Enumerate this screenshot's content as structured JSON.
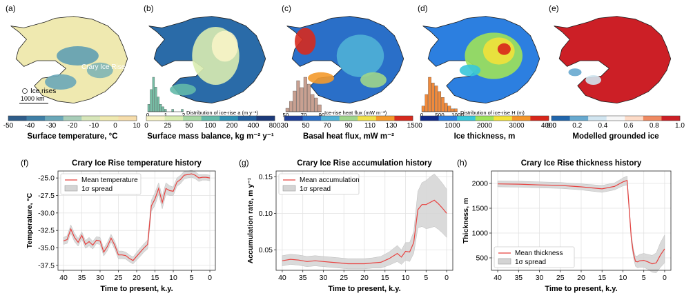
{
  "maps": [
    {
      "panel": "(a)",
      "title": "Surface temperature, °C",
      "ticks": [
        "-50",
        "-40",
        "-30",
        "-20",
        "-10",
        "0",
        "10"
      ],
      "colors": [
        "#2f5d8a",
        "#3f7fa6",
        "#6aa7b8",
        "#a8cdb8",
        "#d7e6b9",
        "#efe9b0",
        "#f6ddab"
      ],
      "annotations": {
        "label": "Crary Ice Rise",
        "legend": "Ice rises",
        "scale": "1000 km"
      }
    },
    {
      "panel": "(b)",
      "title": "Surface mass balance, kg m⁻² y⁻¹",
      "ticks": [
        "0",
        "25",
        "50",
        "100",
        "200",
        "400",
        "800"
      ],
      "colors": [
        "#f7f4c7",
        "#d9ecb0",
        "#a7d7a3",
        "#63b9a9",
        "#2f8fb4",
        "#2260a0",
        "#1c3a7a"
      ],
      "hist": {
        "label": "Distribution of ice-rise a (m y⁻¹)",
        "ticks": [
          "0",
          "1",
          "2"
        ],
        "color": "#76bfa6",
        "counts": [
          3,
          9,
          14,
          10,
          6,
          3,
          2,
          1,
          0,
          0,
          1,
          0,
          0,
          0,
          1
        ]
      }
    },
    {
      "panel": "(c)",
      "title": "Basal heat flux, mW m⁻²",
      "ticks": [
        "30",
        "50",
        "70",
        "90",
        "110",
        "130",
        "150"
      ],
      "colors": [
        "#1e3f9a",
        "#2a6fc8",
        "#4fb0d6",
        "#9fd58b",
        "#f0e04a",
        "#f49a2c",
        "#d62a1e"
      ],
      "hist": {
        "label": "Ice-rise heat flux (mW m⁻²)",
        "ticks": [
          "50",
          "70",
          "90"
        ],
        "color": "#c8a091",
        "counts": [
          1,
          3,
          6,
          9,
          7,
          10,
          8,
          5,
          4,
          2
        ]
      }
    },
    {
      "panel": "(d)",
      "title": "Ice thickness, m",
      "ticks": [
        "0",
        "1000",
        "2000",
        "3000",
        "4000"
      ],
      "colors": [
        "#0f2a8a",
        "#2c7fe0",
        "#37c6d9",
        "#9ee25a",
        "#f2e23a",
        "#f4952a",
        "#d8261b"
      ],
      "hist": {
        "label": "Distribution of ice-rise H (m)",
        "ticks": [
          "0",
          "500",
          "1000"
        ],
        "color": "#f08a3c",
        "counts": [
          2,
          6,
          12,
          10,
          9,
          7,
          5,
          3,
          2,
          1,
          1
        ]
      }
    },
    {
      "panel": "(e)",
      "title": "Modelled grounded ice",
      "ticks": [
        "0.0",
        "0.2",
        "0.4",
        "0.6",
        "0.8",
        "1.0"
      ],
      "colors": [
        "#2166ac",
        "#67a9cf",
        "#d1e5f0",
        "#f7f7f7",
        "#fddbc7",
        "#ef8a62",
        "#cc1f26"
      ]
    }
  ],
  "chart_data": [
    {
      "type": "line",
      "panel": "(f)",
      "title": "Crary Ice Rise temperature history",
      "xlabel": "Time to present, k.y.",
      "ylabel": "Temperature, °C",
      "xlim": [
        41.5,
        -1.5
      ],
      "ylim": [
        -38.2,
        -24.0
      ],
      "xticks": [
        40,
        35,
        30,
        25,
        20,
        15,
        10,
        5,
        0
      ],
      "yticks": [
        -37.5,
        -35.0,
        -32.5,
        -30.0,
        -27.5,
        -25.0
      ],
      "ytick_labels": [
        "-37.5",
        "-35.0",
        "-32.5",
        "-30.0",
        "-27.5",
        "-25.0"
      ],
      "grid": true,
      "legend_position": "upper left",
      "series": [
        {
          "name": "Mean temperature",
          "color": "#e8413f",
          "x": [
            40,
            39,
            38,
            37,
            36,
            35,
            34,
            33,
            32,
            31,
            30,
            29,
            28,
            27,
            26,
            25,
            24,
            23,
            22,
            21,
            20,
            19,
            18,
            17,
            16,
            15,
            14,
            13,
            12,
            11,
            10,
            9,
            8,
            7,
            6,
            5,
            4,
            3,
            2,
            1,
            0
          ],
          "y": [
            -34.0,
            -33.8,
            -32.3,
            -33.5,
            -34.2,
            -33.2,
            -34.5,
            -34.1,
            -34.6,
            -33.9,
            -34.0,
            -35.6,
            -34.8,
            -33.6,
            -34.6,
            -36.0,
            -36.0,
            -36.1,
            -36.5,
            -36.8,
            -36.2,
            -35.6,
            -35.0,
            -34.5,
            -29.0,
            -28.0,
            -26.5,
            -28.5,
            -26.5,
            -26.8,
            -26.9,
            -25.6,
            -25.2,
            -24.6,
            -24.5,
            -24.4,
            -24.6,
            -25.0,
            -24.9,
            -24.9,
            -25.0
          ],
          "spread": [
            0.5,
            0.55,
            0.6,
            0.6,
            0.55,
            0.5,
            0.55,
            0.6,
            0.55,
            0.5,
            0.5,
            0.55,
            0.6,
            0.55,
            0.55,
            0.55,
            0.55,
            0.5,
            0.5,
            0.5,
            0.55,
            0.6,
            0.6,
            0.65,
            0.8,
            0.9,
            0.8,
            0.9,
            0.8,
            0.7,
            0.6,
            0.6,
            0.6,
            0.55,
            0.5,
            0.5,
            0.5,
            0.5,
            0.4,
            0.4,
            0.4
          ]
        },
        {
          "name": "1σ spread",
          "color": "#c8c8c8"
        }
      ]
    },
    {
      "type": "line",
      "panel": "(g)",
      "title": "Crary Ice Rise accumulation history",
      "xlabel": "Time to present, k.y.",
      "ylabel": "Accumulation rate, m y⁻¹",
      "xlim": [
        41.5,
        -1.5
      ],
      "ylim": [
        0.022,
        0.158
      ],
      "xticks": [
        40,
        35,
        30,
        25,
        20,
        15,
        10,
        5,
        0
      ],
      "yticks": [
        0.05,
        0.1,
        0.15
      ],
      "ytick_labels": [
        "0.05",
        "0.10",
        "0.15"
      ],
      "grid": true,
      "legend_position": "upper left",
      "series": [
        {
          "name": "Mean accumulation",
          "color": "#e8413f",
          "x": [
            40,
            38,
            36,
            34,
            32,
            30,
            28,
            26,
            24,
            22,
            20,
            18,
            16,
            14,
            12,
            11,
            10,
            9,
            8,
            7,
            6,
            5,
            4,
            3,
            2,
            1,
            0
          ],
          "y": [
            0.035,
            0.037,
            0.036,
            0.034,
            0.035,
            0.034,
            0.033,
            0.032,
            0.031,
            0.031,
            0.031,
            0.032,
            0.033,
            0.038,
            0.045,
            0.04,
            0.048,
            0.047,
            0.06,
            0.105,
            0.112,
            0.112,
            0.115,
            0.118,
            0.113,
            0.107,
            0.1
          ],
          "spread": [
            0.007,
            0.007,
            0.007,
            0.007,
            0.007,
            0.007,
            0.007,
            0.007,
            0.007,
            0.007,
            0.007,
            0.007,
            0.008,
            0.009,
            0.011,
            0.01,
            0.012,
            0.013,
            0.015,
            0.025,
            0.03,
            0.033,
            0.035,
            0.036,
            0.035,
            0.034,
            0.033
          ]
        },
        {
          "name": "1σ spread",
          "color": "#c8c8c8"
        }
      ]
    },
    {
      "type": "line",
      "panel": "(h)",
      "title": "Crary Ice Rise thickness history",
      "xlabel": "Time to present, k.y.",
      "ylabel": "Thickness, m",
      "xlim": [
        41.5,
        -1.5
      ],
      "ylim": [
        250,
        2250
      ],
      "xticks": [
        40,
        35,
        30,
        25,
        20,
        15,
        10,
        5,
        0
      ],
      "yticks": [
        500,
        1000,
        1500,
        2000
      ],
      "ytick_labels": [
        "500",
        "1000",
        "1500",
        "2000"
      ],
      "grid": true,
      "legend_position": "lower left",
      "series": [
        {
          "name": "Mean thickness",
          "color": "#e8413f",
          "x": [
            40,
            35,
            30,
            25,
            20,
            15,
            12,
            10,
            9,
            8.5,
            8,
            7.5,
            7,
            6.5,
            6,
            5,
            4,
            3,
            2,
            1,
            0
          ],
          "y": [
            1990,
            1985,
            1970,
            1960,
            1930,
            1890,
            1940,
            2030,
            2060,
            1500,
            900,
            600,
            430,
            420,
            440,
            450,
            420,
            380,
            400,
            560,
            680
          ],
          "spread": [
            60,
            60,
            60,
            60,
            60,
            70,
            70,
            80,
            90,
            80,
            80,
            80,
            100,
            120,
            130,
            140,
            150,
            170,
            200,
            250,
            280
          ]
        },
        {
          "name": "1σ spread",
          "color": "#c8c8c8"
        }
      ]
    }
  ]
}
